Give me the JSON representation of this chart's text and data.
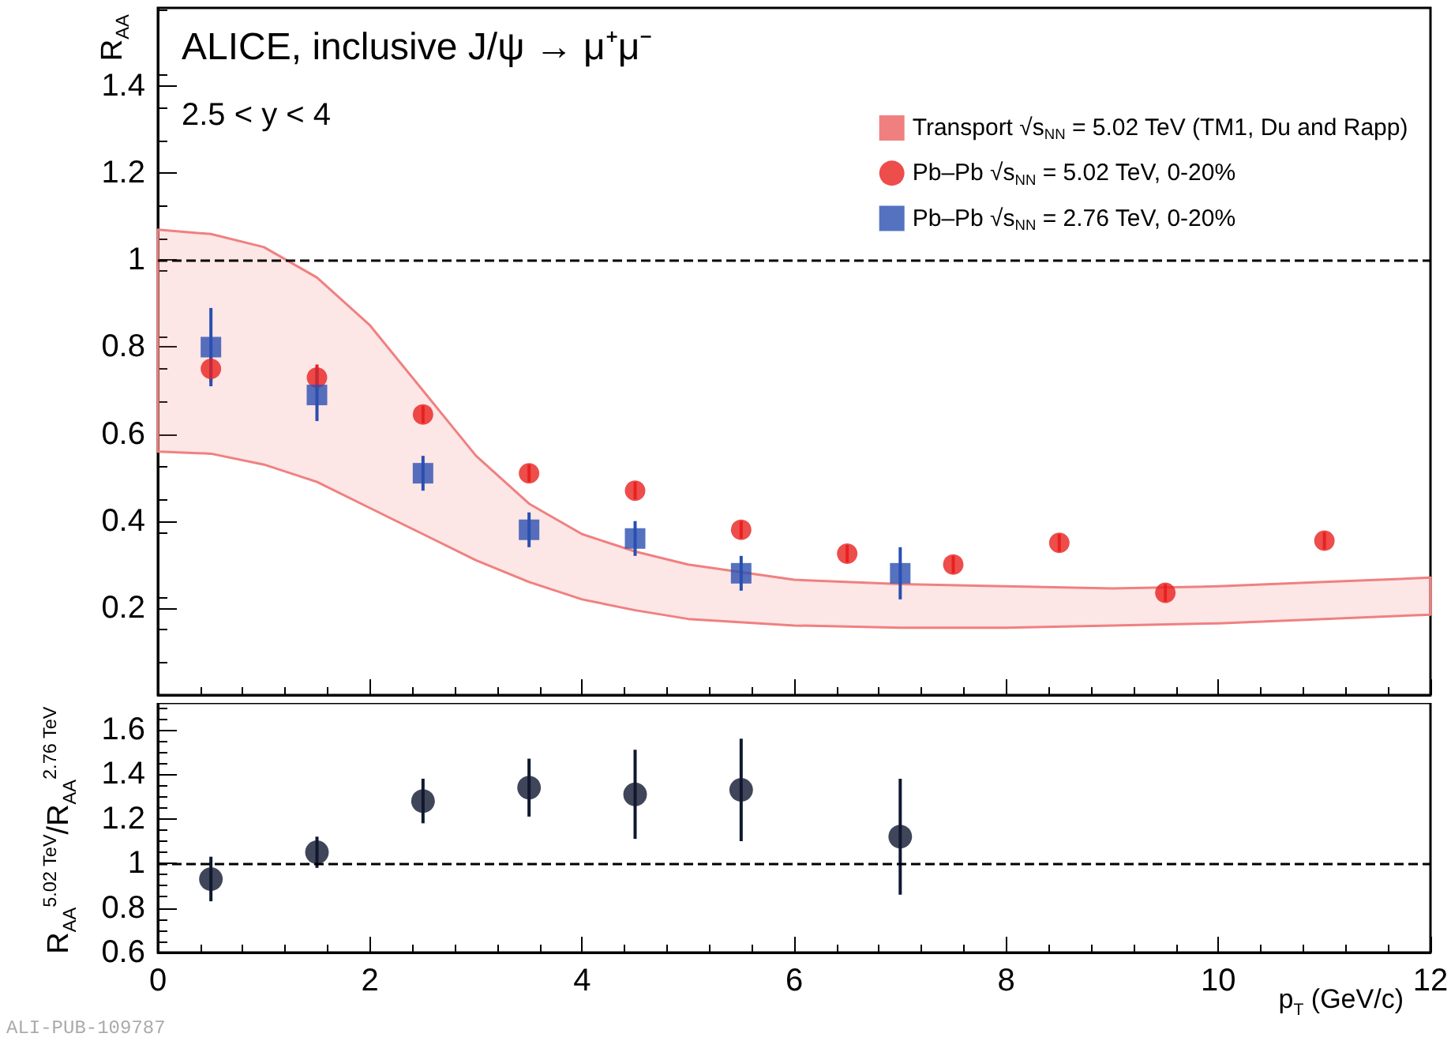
{
  "chart_data": [
    {
      "type": "scatter",
      "ylabel": "R$_{AA}$",
      "annotations": [
        "ALICE, inclusive J/ψ → μ⁺μ⁻",
        "2.5 < y < 4"
      ],
      "xlim": [
        0,
        12
      ],
      "xticks": [
        {
          "value": 0,
          "label": null
        },
        {
          "value": 2,
          "label": null
        },
        {
          "value": 4,
          "label": null
        },
        {
          "value": 6,
          "label": null
        },
        {
          "value": 8,
          "label": null
        },
        {
          "value": 10,
          "label": null
        },
        {
          "value": 12,
          "label": null
        }
      ],
      "ylim": [
        0,
        1.58
      ],
      "yticks": [
        0.2,
        0.4,
        0.6,
        0.8,
        1,
        1.2,
        1.4
      ],
      "tick_labels": "y",
      "grid": false,
      "legend": "top right",
      "ref_lines": [
        {
          "axis": "y",
          "value": 1,
          "label": null,
          "color": "#000000",
          "line_style": "dashed"
        }
      ],
      "series": [
        {
          "name": "Transport √s$_{NN}$ = 5.02 TeV (TM1, Du and Rapp)",
          "type": "area",
          "color": "#f08080",
          "x": [
            0,
            0.5,
            1,
            1.5,
            2,
            2.5,
            3,
            3.5,
            4,
            4.5,
            5,
            6,
            7,
            8,
            9,
            10,
            11,
            12
          ],
          "values": [
            null,
            null,
            null,
            null,
            null,
            null,
            null,
            null,
            null,
            null,
            null,
            null,
            null,
            null,
            null,
            null,
            null,
            null
          ],
          "lower": [
            0.56,
            0.555,
            0.53,
            0.49,
            0.43,
            0.37,
            0.31,
            0.26,
            0.22,
            0.195,
            0.175,
            0.16,
            0.155,
            0.155,
            0.16,
            0.165,
            0.175,
            0.185
          ],
          "upper": [
            1.07,
            1.06,
            1.03,
            0.96,
            0.85,
            0.7,
            0.55,
            0.44,
            0.37,
            0.33,
            0.3,
            0.265,
            0.255,
            0.25,
            0.245,
            0.25,
            0.26,
            0.27
          ]
        },
        {
          "name": "Pb–Pb √s$_{NN}$ = 5.02 TeV, 0-20%",
          "marker": "circle",
          "color": "#e8201e",
          "x": [
            0.5,
            1.5,
            2.5,
            3.5,
            4.5,
            5.5,
            6.5,
            7.5,
            8.5,
            9.5,
            11
          ],
          "values": [
            0.75,
            0.73,
            0.645,
            0.51,
            0.47,
            0.38,
            0.325,
            0.3,
            0.35,
            0.235,
            0.355
          ],
          "errors": [
            0.03,
            0.03,
            0.02,
            0.02,
            0.02,
            0.02,
            0.02,
            0.02,
            0.02,
            0.02,
            0.02
          ]
        },
        {
          "name": "Pb–Pb √s$_{NN}$ = 2.76 TeV, 0-20%",
          "marker": "square",
          "color": "#2a4fb0",
          "x": [
            0.5,
            1.5,
            2.5,
            3.5,
            4.5,
            5.5,
            7
          ],
          "values": [
            0.8,
            0.69,
            0.51,
            0.38,
            0.36,
            0.28,
            0.28
          ],
          "errors": [
            0.09,
            0.06,
            0.04,
            0.04,
            0.04,
            0.04,
            0.06
          ]
        }
      ]
    },
    {
      "type": "scatter",
      "ylabel": "R$_{AA}$$^{5.02 TeV}$/R$_{AA}$$^{2.76 TeV}$",
      "xlabel": "p$_{T}$ (GeV/c)",
      "annotations": [
        "ALI-PUB-109787"
      ],
      "xlim": [
        0,
        12
      ],
      "xticks": [
        0,
        2,
        4,
        6,
        8,
        10,
        12
      ],
      "ylim": [
        0.6,
        1.72
      ],
      "yticks": [
        0.6,
        0.8,
        1,
        1.2,
        1.4,
        1.6
      ],
      "grid": false,
      "legend": false,
      "ref_lines": [
        {
          "axis": "y",
          "value": 1,
          "label": null,
          "color": "#000000",
          "line_style": "dashed"
        }
      ],
      "series": [
        {
          "marker": "circle",
          "color": "#101830",
          "x": [
            0.5,
            1.5,
            2.5,
            3.5,
            4.5,
            5.5,
            7
          ],
          "values": [
            0.93,
            1.05,
            1.28,
            1.34,
            1.31,
            1.33,
            1.12
          ],
          "errors": [
            0.1,
            0.07,
            0.1,
            0.13,
            0.2,
            0.23,
            0.26
          ]
        }
      ]
    }
  ]
}
